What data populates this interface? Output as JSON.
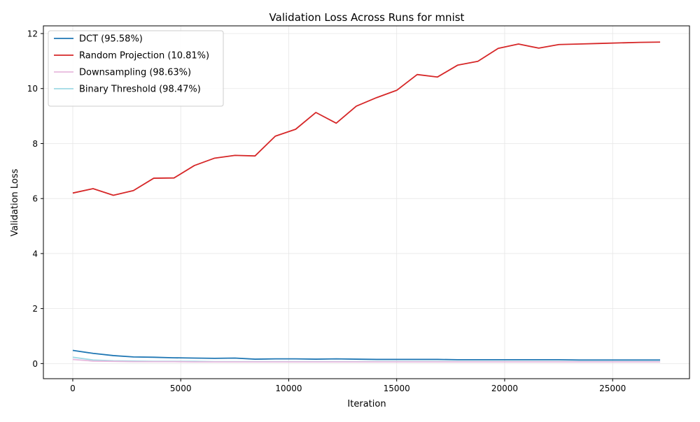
{
  "chart_data": {
    "type": "line",
    "title": "Validation Loss Across Runs for mnist",
    "xlabel": "Iteration",
    "ylabel": "Validation Loss",
    "xlim": [
      -1360,
      28560
    ],
    "ylim": [
      -0.55,
      12.28
    ],
    "xticks": [
      0,
      5000,
      10000,
      15000,
      20000,
      25000
    ],
    "xtick_labels": [
      "0",
      "5000",
      "10000",
      "15000",
      "20000",
      "25000"
    ],
    "yticks": [
      0,
      2,
      4,
      6,
      8,
      10,
      12
    ],
    "ytick_labels": [
      "0",
      "2",
      "4",
      "6",
      "8",
      "10",
      "12"
    ],
    "grid": true,
    "legend_position": "top-left",
    "x": [
      0,
      940,
      1880,
      2810,
      3750,
      4690,
      5630,
      6570,
      7510,
      8440,
      9380,
      10320,
      11260,
      12200,
      13130,
      14070,
      15010,
      15950,
      16890,
      17820,
      18760,
      19700,
      20640,
      21580,
      22510,
      23450,
      24390,
      25330,
      26270,
      27200
    ],
    "series": [
      {
        "name": "DCT (95.58%)",
        "color": "#1f77b4",
        "values": [
          0.48,
          0.37,
          0.29,
          0.24,
          0.23,
          0.21,
          0.2,
          0.19,
          0.2,
          0.16,
          0.17,
          0.17,
          0.16,
          0.17,
          0.16,
          0.15,
          0.15,
          0.15,
          0.15,
          0.14,
          0.14,
          0.14,
          0.14,
          0.14,
          0.14,
          0.13,
          0.13,
          0.13,
          0.13,
          0.13
        ]
      },
      {
        "name": "Random Projection (10.81%)",
        "color": "#d62728",
        "values": [
          6.2,
          6.36,
          6.12,
          6.29,
          6.74,
          6.75,
          7.2,
          7.47,
          7.57,
          7.55,
          8.27,
          8.52,
          9.13,
          8.74,
          9.36,
          9.67,
          9.94,
          10.51,
          10.42,
          10.85,
          10.99,
          11.46,
          11.62,
          11.47,
          11.6,
          11.62,
          11.64,
          11.66,
          11.68,
          11.69
        ]
      },
      {
        "name": "Downsampling (98.63%)",
        "color": "#e7b9dd",
        "values": [
          0.15,
          0.09,
          0.08,
          0.07,
          0.07,
          0.07,
          0.06,
          0.06,
          0.06,
          0.06,
          0.06,
          0.06,
          0.06,
          0.06,
          0.06,
          0.06,
          0.06,
          0.06,
          0.06,
          0.06,
          0.06,
          0.06,
          0.06,
          0.06,
          0.06,
          0.06,
          0.06,
          0.06,
          0.06,
          0.06
        ]
      },
      {
        "name": "Binary Threshold (98.47%)",
        "color": "#9edae5",
        "values": [
          0.23,
          0.13,
          0.1,
          0.09,
          0.08,
          0.08,
          0.08,
          0.07,
          0.07,
          0.07,
          0.07,
          0.07,
          0.07,
          0.07,
          0.07,
          0.07,
          0.07,
          0.07,
          0.07,
          0.07,
          0.07,
          0.07,
          0.07,
          0.07,
          0.07,
          0.07,
          0.07,
          0.07,
          0.07,
          0.07
        ]
      }
    ]
  }
}
